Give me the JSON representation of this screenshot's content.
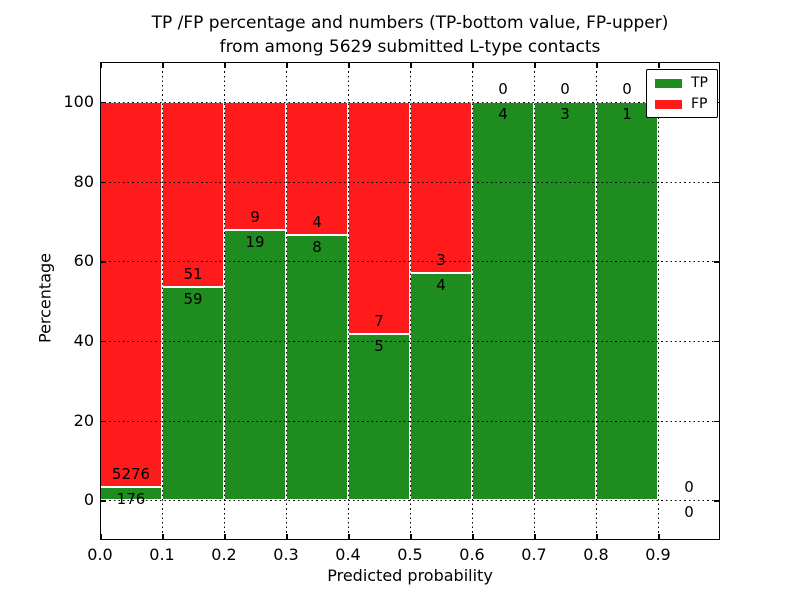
{
  "figure": {
    "title_line1": "TP /FP percentage and numbers (TP-bottom value, FP-upper)",
    "title_line2": "from among 5629 submitted L-type contacts"
  },
  "chart_data": {
    "type": "bar",
    "stacked": true,
    "normalized_to_percent": true,
    "title": "TP /FP percentage and numbers (TP-bottom value, FP-upper) from among 5629 submitted L-type contacts",
    "xlabel": "Predicted probability",
    "ylabel": "Percentage",
    "xlim": [
      0.0,
      1.0
    ],
    "ylim": [
      -10,
      110
    ],
    "grid": true,
    "grid_style": "dotted",
    "bin_width": 0.1,
    "bin_starts": [
      0.0,
      0.1,
      0.2,
      0.3,
      0.4,
      0.5,
      0.6,
      0.7,
      0.8,
      0.9
    ],
    "xtick_labels": [
      "0.0",
      "0.1",
      "0.2",
      "0.3",
      "0.4",
      "0.5",
      "0.6",
      "0.7",
      "0.8",
      "0.9"
    ],
    "ytick_values": [
      0,
      20,
      40,
      60,
      80,
      100
    ],
    "series": [
      {
        "name": "TP",
        "color": "#1f8c1f",
        "stack_position": "bottom",
        "counts": [
          176,
          59,
          19,
          8,
          5,
          4,
          4,
          3,
          1,
          0
        ]
      },
      {
        "name": "FP",
        "color": "#ff1b1b",
        "stack_position": "top",
        "counts": [
          5276,
          51,
          9,
          4,
          7,
          3,
          0,
          0,
          0,
          0
        ]
      }
    ],
    "tp_percent_per_bin": [
      3.23,
      53.64,
      67.86,
      66.67,
      41.67,
      57.14,
      100.0,
      100.0,
      100.0,
      0.0
    ],
    "bar_labels": {
      "fp_upper": [
        "5276",
        "51",
        "9",
        "4",
        "7",
        "3",
        "0",
        "0",
        "0",
        "0"
      ],
      "tp_bottom": [
        "176",
        "59",
        "19",
        "8",
        "5",
        "4",
        "4",
        "3",
        "1",
        "0"
      ]
    },
    "legend": {
      "position": "upper right",
      "entries": [
        {
          "label": "TP",
          "color": "#1f8c1f"
        },
        {
          "label": "FP",
          "color": "#ff1b1b"
        }
      ]
    }
  },
  "colors": {
    "tp": "#1f8c1f",
    "fp": "#ff1b1b",
    "grid": "#000000",
    "background": "#ffffff"
  }
}
